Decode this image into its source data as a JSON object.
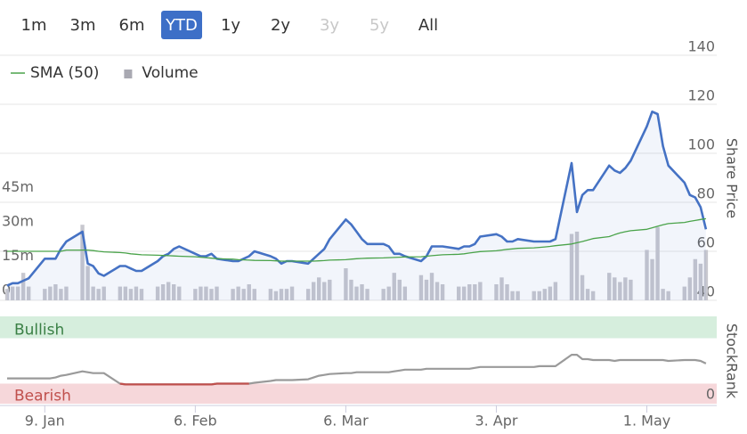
{
  "range_selector": {
    "buttons": [
      "1m",
      "3m",
      "6m",
      "YTD",
      "1y",
      "2y",
      "3y",
      "5y",
      "All"
    ],
    "selected": 3,
    "disabled": [
      6,
      7
    ]
  },
  "chart_data": [
    {
      "type": "stock",
      "ylabel": "Share Price",
      "x": [
        2,
        3,
        4,
        5,
        6,
        9,
        10,
        11,
        12,
        13,
        16,
        17,
        18,
        19,
        20,
        23,
        24,
        25,
        26,
        27,
        30,
        31,
        32,
        33,
        34,
        37,
        38,
        39,
        40,
        41,
        44,
        45,
        46,
        47,
        48,
        51,
        52,
        53,
        54,
        55,
        58,
        59,
        60,
        61,
        62,
        65,
        66,
        67,
        68,
        69,
        72,
        73,
        74,
        75,
        76,
        79,
        80,
        81,
        82,
        83,
        86,
        87,
        88,
        89,
        90,
        93,
        94,
        95,
        96,
        97,
        100,
        101,
        102,
        103,
        104,
        107,
        108,
        109,
        110,
        111,
        114,
        115,
        116,
        117,
        118,
        121,
        122,
        123,
        124,
        125,
        128,
        129,
        130,
        131,
        132
      ],
      "xlim": [
        1,
        134
      ],
      "ylim": [
        40,
        140
      ],
      "yticks": [
        40,
        60,
        80,
        100,
        120,
        140
      ],
      "y2lim": [
        0,
        107
      ],
      "y2ticks": [
        0,
        {
          "value": 15,
          "label": "15m"
        },
        {
          "value": 30,
          "label": "30m"
        },
        {
          "value": 45,
          "label": "45m"
        }
      ],
      "grid": true,
      "series": [
        {
          "type": "line",
          "area": true,
          "color": "#4572c4",
          "values": [
            46,
            47,
            47,
            48,
            49,
            57,
            57,
            57,
            61,
            64,
            68,
            55,
            54,
            51,
            50,
            54,
            54,
            53,
            52,
            52,
            56,
            58,
            59,
            61,
            62,
            59,
            58,
            58,
            59,
            57,
            56,
            56,
            57,
            58,
            60,
            58,
            57,
            55,
            56,
            56,
            55,
            57,
            59,
            61,
            65,
            73,
            71,
            68,
            65,
            63,
            63,
            62,
            59,
            59,
            58,
            56,
            58,
            62,
            62,
            62,
            61,
            62,
            62,
            63,
            66,
            67,
            66,
            64,
            64,
            65,
            64,
            64,
            64,
            64,
            65,
            96,
            76,
            83,
            85,
            85,
            95,
            93,
            92,
            94,
            97,
            111,
            117,
            116,
            103,
            95,
            88,
            83,
            82,
            78,
            69
          ]
        },
        {
          "name": "SMA (50)",
          "type": "line",
          "color": "#4aa34a",
          "values": [
            60,
            60,
            60,
            60,
            60,
            60,
            60,
            60,
            60,
            60.5,
            60.5,
            60.5,
            60.3,
            60,
            59.8,
            59.5,
            59.3,
            59,
            58.8,
            58.6,
            58.4,
            58.3,
            58.2,
            58.1,
            58,
            57.8,
            57.6,
            57.4,
            57.2,
            57,
            56.8,
            56.6,
            56.5,
            56.4,
            56.3,
            56.2,
            56.1,
            56,
            56,
            56,
            56,
            56,
            56.1,
            56.2,
            56.4,
            56.6,
            56.8,
            57,
            57.1,
            57.2,
            57.3,
            57.4,
            57.5,
            57.6,
            57.7,
            57.8,
            58,
            58.2,
            58.4,
            58.6,
            58.8,
            59,
            59.3,
            59.6,
            59.9,
            60.2,
            60.5,
            60.8,
            61,
            61.2,
            61.4,
            61.6,
            61.8,
            62,
            62.3,
            63,
            63.5,
            64,
            64.6,
            65.2,
            66,
            66.8,
            67.5,
            68,
            68.4,
            69,
            69.6,
            70.2,
            70.8,
            71.3,
            71.8,
            72.2,
            72.6,
            73,
            73.3
          ]
        },
        {
          "name": "Volume",
          "type": "bar",
          "axis": "y2",
          "color": "#c8c8cf",
          "values": [
            5,
            6,
            6,
            12,
            6,
            5,
            6,
            7,
            5,
            6,
            33,
            15,
            6,
            5,
            6,
            6,
            6,
            5,
            6,
            5,
            6,
            7,
            8,
            7,
            6,
            5,
            6,
            6,
            5,
            6,
            5,
            6,
            5,
            7,
            5,
            5,
            4,
            5,
            5,
            6,
            5,
            8,
            10,
            8,
            9,
            14,
            9,
            6,
            7,
            5,
            5,
            6,
            12,
            9,
            6,
            11,
            9,
            12,
            8,
            7,
            6,
            6,
            7,
            7,
            8,
            7,
            10,
            7,
            4,
            4,
            4,
            4,
            5,
            6,
            8,
            29,
            30,
            11,
            5,
            4,
            12,
            10,
            8,
            10,
            9,
            22,
            18,
            32,
            5,
            4,
            6,
            10,
            18,
            16,
            22
          ]
        }
      ]
    },
    {
      "type": "line",
      "ylabel": "StockRank",
      "x": [
        2,
        3,
        4,
        5,
        6,
        9,
        10,
        11,
        12,
        13,
        16,
        17,
        18,
        19,
        20,
        23,
        24,
        25,
        26,
        27,
        30,
        31,
        32,
        33,
        34,
        37,
        38,
        39,
        40,
        41,
        44,
        45,
        46,
        47,
        48,
        51,
        52,
        53,
        54,
        55,
        58,
        59,
        60,
        61,
        62,
        65,
        66,
        67,
        68,
        69,
        72,
        73,
        74,
        75,
        76,
        79,
        80,
        81,
        82,
        83,
        86,
        87,
        88,
        89,
        90,
        93,
        94,
        95,
        96,
        97,
        100,
        101,
        102,
        103,
        104,
        107,
        108,
        109,
        110,
        111,
        114,
        115,
        116,
        117,
        118,
        121,
        122,
        123,
        124,
        125,
        128,
        129,
        130,
        131,
        132
      ],
      "xlim": [
        1,
        134
      ],
      "xticks": [
        {
          "value": 9,
          "label": "9. Jan"
        },
        {
          "value": 37,
          "label": "6. Feb"
        },
        {
          "value": 65,
          "label": "6. Mar"
        },
        {
          "value": 93,
          "label": "3. Apr"
        },
        {
          "value": 121,
          "label": "1. May"
        }
      ],
      "ylim": [
        0,
        100
      ],
      "yticks": [
        0
      ],
      "bands": [
        {
          "label": "Bullish",
          "range": [
            75,
            100
          ],
          "color": "#d6eedd",
          "text_color": "#3a8045"
        },
        {
          "label": "Bearish",
          "range": [
            0,
            23
          ],
          "color": "#f6d7da",
          "text_color": "#c0504d"
        }
      ],
      "series": [
        {
          "color": "#9a9a9a",
          "bearish_color": "#c0504d",
          "values": [
            29,
            29,
            29,
            29,
            29,
            29,
            29,
            30,
            32,
            33,
            37,
            36,
            35,
            35,
            35,
            23,
            22,
            22,
            22,
            22,
            22,
            22,
            22,
            22,
            22,
            22,
            22,
            22,
            22,
            23,
            23,
            23,
            23,
            23,
            24,
            26,
            27,
            27,
            27,
            27,
            28,
            30,
            32,
            33,
            34,
            35,
            35,
            36,
            36,
            36,
            36,
            36,
            37,
            38,
            39,
            39,
            40,
            40,
            40,
            40,
            40,
            40,
            40,
            41,
            42,
            42,
            42,
            42,
            42,
            42,
            42,
            43,
            43,
            43,
            43,
            56,
            56,
            51,
            51,
            50,
            50,
            49,
            50,
            50,
            50,
            50,
            50,
            50,
            50,
            49,
            50,
            50,
            50,
            49,
            46
          ]
        }
      ]
    }
  ]
}
